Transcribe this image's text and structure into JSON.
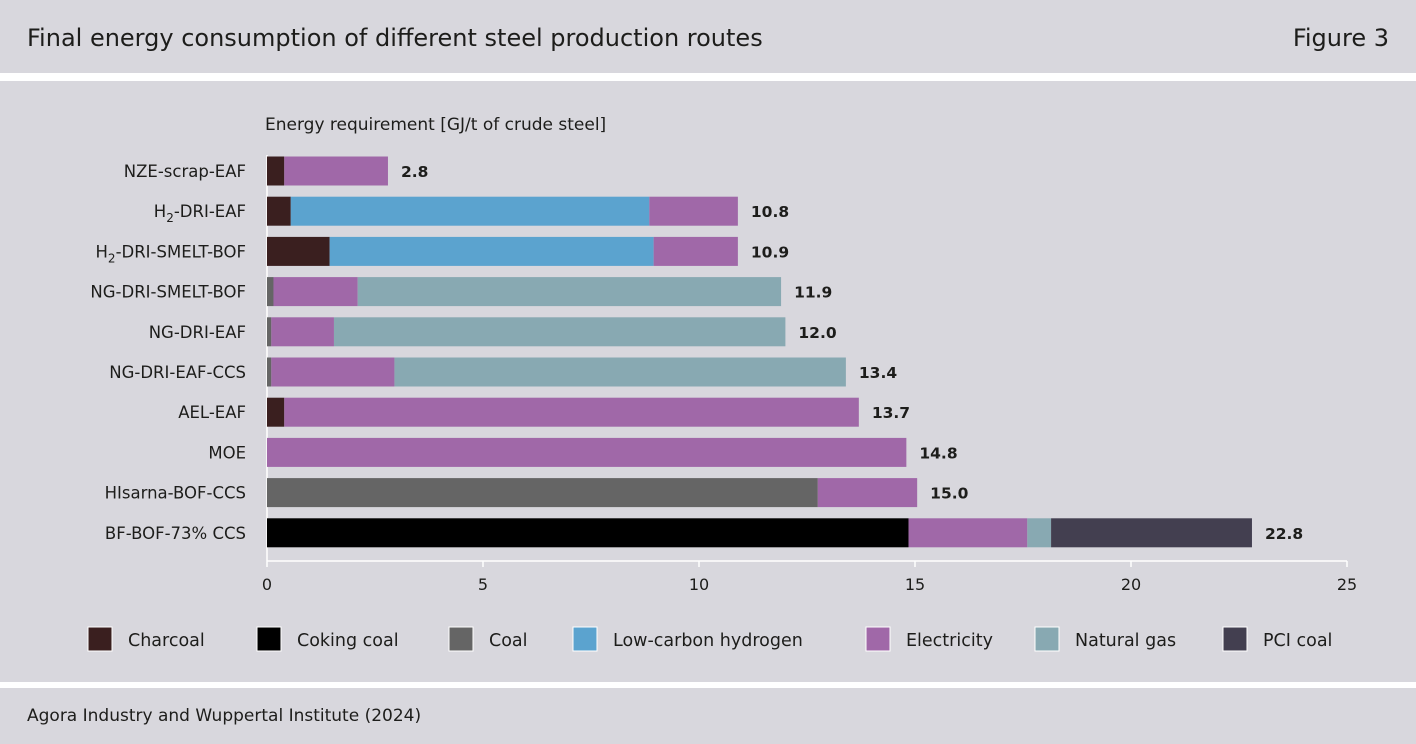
{
  "header": {
    "title": "Final energy consumption of different steel production routes",
    "figure_label": "Figure 3"
  },
  "footer": {
    "source": "Agora Industry and Wuppertal Institute (2024)"
  },
  "chart_data": {
    "type": "bar",
    "orientation": "horizontal",
    "stacked": true,
    "title": "Energy requirement [GJ/t of crude steel]",
    "xlim": [
      0,
      25
    ],
    "xticks": [
      0,
      5,
      10,
      15,
      20,
      25
    ],
    "grid": false,
    "legend_position": "bottom",
    "categories": [
      {
        "pre": "NZE-scrap-EAF",
        "sub": "",
        "post": ""
      },
      {
        "pre": "H",
        "sub": "2",
        "post": "-DRI-EAF"
      },
      {
        "pre": "H",
        "sub": "2",
        "post": "-DRI-SMELT-BOF"
      },
      {
        "pre": "NG-DRI-SMELT-BOF",
        "sub": "",
        "post": ""
      },
      {
        "pre": "NG-DRI-EAF",
        "sub": "",
        "post": ""
      },
      {
        "pre": "NG-DRI-EAF-CCS",
        "sub": "",
        "post": ""
      },
      {
        "pre": "AEL-EAF",
        "sub": "",
        "post": ""
      },
      {
        "pre": "MOE",
        "sub": "",
        "post": ""
      },
      {
        "pre": "HIsarna-BOF-CCS",
        "sub": "",
        "post": ""
      },
      {
        "pre": "BF-BOF-73% CCS",
        "sub": "",
        "post": ""
      }
    ],
    "totals": [
      "2.8",
      "10.8",
      "10.9",
      "11.9",
      "12.0",
      "13.4",
      "13.7",
      "14.8",
      "15.0",
      "22.8"
    ],
    "series": [
      {
        "name": "Charcoal",
        "color": "#3a1f1f",
        "values": [
          0.4,
          0.55,
          1.45,
          0,
          0,
          0,
          0.4,
          0,
          0,
          0
        ]
      },
      {
        "name": "Coking coal",
        "color": "#000000",
        "values": [
          0,
          0,
          0,
          0,
          0,
          0,
          0,
          0,
          0,
          14.85
        ]
      },
      {
        "name": "Coal",
        "color": "#656565",
        "values": [
          0,
          0,
          0,
          0.15,
          0.1,
          0.1,
          0,
          0,
          12.75,
          0
        ]
      },
      {
        "name": "Low-carbon hydrogen",
        "color": "#5ba3cf",
        "values": [
          0,
          8.3,
          7.5,
          0,
          0,
          0,
          0,
          0,
          0,
          0
        ]
      },
      {
        "name": "Electricity",
        "color": "#a068a8",
        "values": [
          2.4,
          2.05,
          1.95,
          1.95,
          1.45,
          2.85,
          13.3,
          14.8,
          2.3,
          2.75
        ]
      },
      {
        "name": "Natural gas",
        "color": "#88a9b2",
        "values": [
          0,
          0,
          0,
          9.8,
          10.45,
          10.45,
          0,
          0,
          0,
          0.55
        ]
      },
      {
        "name": "PCI coal",
        "color": "#433f50",
        "values": [
          0,
          0,
          0,
          0,
          0,
          0,
          0,
          0,
          0,
          4.65
        ]
      }
    ]
  }
}
